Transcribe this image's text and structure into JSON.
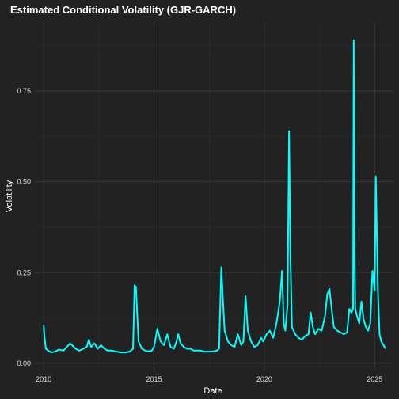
{
  "colors": {
    "background": "#222222",
    "panel": "#222222",
    "grid_major": "#3a3a3a",
    "grid_minor": "#2e2e2e",
    "text": "#ffffff",
    "tick_text": "#d9d9d9",
    "series": "#00ffff"
  },
  "chart_data": {
    "type": "line",
    "title": "Estimated Conditional Volatility (GJR-GARCH)",
    "xlabel": "Date",
    "ylabel": "Volatility",
    "xlim": [
      2009.6,
      2025.85
    ],
    "ylim": [
      -0.02,
      0.94
    ],
    "grid": true,
    "legend": "none",
    "x_ticks": [
      {
        "value": 2010,
        "label": "2010"
      },
      {
        "value": 2015,
        "label": "2015"
      },
      {
        "value": 2020,
        "label": "2020"
      },
      {
        "value": 2025,
        "label": "2025"
      }
    ],
    "y_ticks": [
      {
        "value": 0.0,
        "label": "0.00"
      },
      {
        "value": 0.25,
        "label": "0.25"
      },
      {
        "value": 0.5,
        "label": "0.50"
      },
      {
        "value": 0.75,
        "label": "0.75"
      }
    ],
    "series": [
      {
        "color": "#00ffff",
        "x": [
          2010.0,
          2010.04,
          2010.1,
          2010.2,
          2010.35,
          2010.5,
          2010.7,
          2010.9,
          2011.05,
          2011.2,
          2011.45,
          2011.6,
          2011.8,
          2011.95,
          2012.05,
          2012.15,
          2012.3,
          2012.45,
          2012.6,
          2012.75,
          2012.9,
          2013.1,
          2013.3,
          2013.5,
          2013.7,
          2013.9,
          2014.05,
          2014.12,
          2014.18,
          2014.3,
          2014.45,
          2014.6,
          2014.75,
          2014.9,
          2015.0,
          2015.15,
          2015.3,
          2015.45,
          2015.6,
          2015.75,
          2015.9,
          2016.02,
          2016.1,
          2016.2,
          2016.35,
          2016.5,
          2016.65,
          2016.8,
          2016.95,
          2017.1,
          2017.3,
          2017.5,
          2017.7,
          2017.85,
          2017.95,
          2018.05,
          2018.12,
          2018.2,
          2018.35,
          2018.5,
          2018.65,
          2018.8,
          2018.95,
          2019.05,
          2019.15,
          2019.25,
          2019.4,
          2019.55,
          2019.7,
          2019.85,
          2019.95,
          2020.1,
          2020.25,
          2020.4,
          2020.55,
          2020.7,
          2020.8,
          2020.88,
          2020.95,
          2021.05,
          2021.12,
          2021.18,
          2021.25,
          2021.4,
          2021.55,
          2021.7,
          2021.85,
          2022.0,
          2022.1,
          2022.2,
          2022.3,
          2022.45,
          2022.6,
          2022.75,
          2022.85,
          2022.95,
          2023.05,
          2023.15,
          2023.3,
          2023.45,
          2023.6,
          2023.75,
          2023.85,
          2023.95,
          2024.02,
          2024.05,
          2024.08,
          2024.12,
          2024.2,
          2024.3,
          2024.4,
          2024.5,
          2024.6,
          2024.7,
          2024.8,
          2024.9,
          2025.0,
          2025.05,
          2025.1,
          2025.15,
          2025.22,
          2025.3,
          2025.4,
          2025.5
        ],
        "y": [
          0.105,
          0.07,
          0.04,
          0.035,
          0.03,
          0.032,
          0.038,
          0.035,
          0.045,
          0.055,
          0.04,
          0.035,
          0.04,
          0.045,
          0.065,
          0.045,
          0.055,
          0.04,
          0.05,
          0.04,
          0.035,
          0.035,
          0.032,
          0.03,
          0.03,
          0.032,
          0.04,
          0.215,
          0.21,
          0.06,
          0.04,
          0.035,
          0.033,
          0.035,
          0.045,
          0.095,
          0.06,
          0.05,
          0.08,
          0.045,
          0.04,
          0.06,
          0.08,
          0.055,
          0.045,
          0.04,
          0.04,
          0.035,
          0.035,
          0.035,
          0.032,
          0.032,
          0.033,
          0.035,
          0.04,
          0.265,
          0.18,
          0.09,
          0.06,
          0.05,
          0.045,
          0.08,
          0.05,
          0.06,
          0.185,
          0.09,
          0.06,
          0.045,
          0.05,
          0.07,
          0.06,
          0.08,
          0.09,
          0.07,
          0.11,
          0.17,
          0.255,
          0.11,
          0.09,
          0.16,
          0.64,
          0.3,
          0.1,
          0.08,
          0.07,
          0.065,
          0.075,
          0.08,
          0.14,
          0.1,
          0.08,
          0.095,
          0.09,
          0.13,
          0.19,
          0.205,
          0.15,
          0.1,
          0.09,
          0.085,
          0.08,
          0.085,
          0.15,
          0.14,
          0.15,
          0.89,
          0.37,
          0.15,
          0.13,
          0.11,
          0.17,
          0.12,
          0.1,
          0.09,
          0.11,
          0.255,
          0.2,
          0.515,
          0.35,
          0.19,
          0.08,
          0.06,
          0.05,
          0.04
        ]
      }
    ]
  }
}
